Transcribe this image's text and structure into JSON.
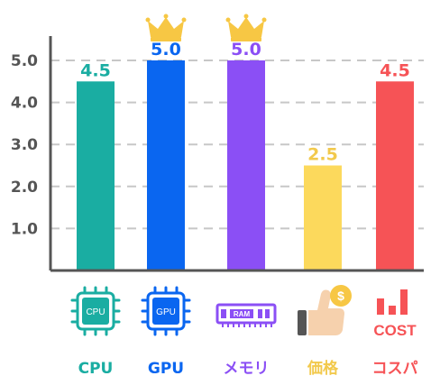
{
  "chart_data": {
    "type": "bar",
    "categories": [
      "CPU",
      "GPU",
      "メモリ",
      "価格",
      "コスパ"
    ],
    "values": [
      4.5,
      5.0,
      5.0,
      2.5,
      4.5
    ],
    "value_labels": [
      "4.5",
      "5.0",
      "5.0",
      "2.5",
      "4.5"
    ],
    "colors": [
      "#1aada2",
      "#0a66f0",
      "#8b4ff5",
      "#fcd95c",
      "#f65356"
    ],
    "label_colors": [
      "#1aada2",
      "#0a66f0",
      "#8b4ff5",
      "#f2c94c",
      "#f65356"
    ],
    "yticks": [
      "1.0",
      "2.0",
      "3.0",
      "4.0",
      "5.0"
    ],
    "ylim": [
      0,
      5.5
    ],
    "grid": true,
    "crowned": [
      "GPU",
      "メモリ"
    ],
    "crown_color": "#f7c744"
  },
  "icons": {
    "cpu_text": "CPU",
    "gpu_text": "GPU",
    "ram_text": "RAM",
    "price_symbol": "$",
    "cost_text": "COST",
    "names": [
      "cpu-chip-icon",
      "gpu-chip-icon",
      "ram-module-icon",
      "thumbs-up-coin-icon",
      "cost-bars-icon"
    ]
  }
}
